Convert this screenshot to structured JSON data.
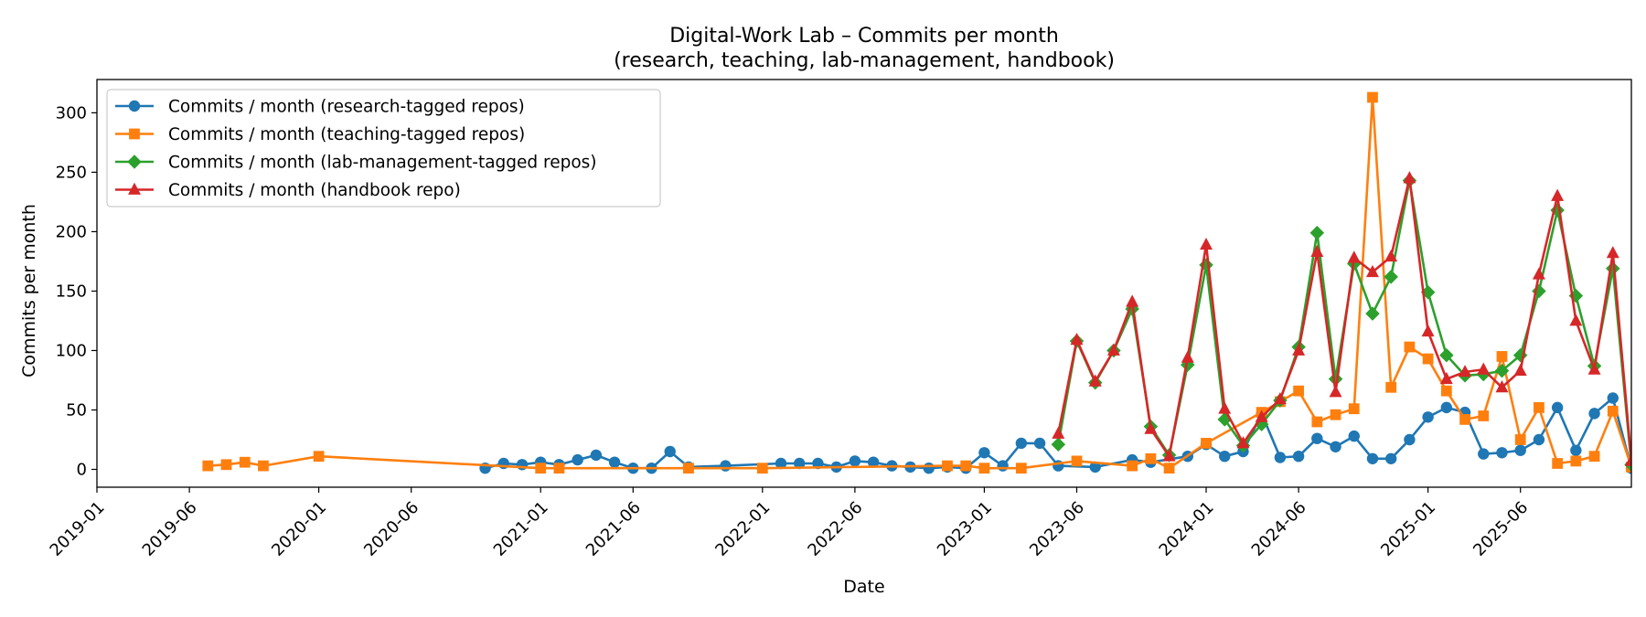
{
  "chart_data": {
    "type": "line",
    "title_lines": [
      "Digital-Work Lab – Commits per month",
      "(research, teaching, lab-management, handbook)"
    ],
    "xlabel": "Date",
    "ylabel": "Commits per month",
    "ylim": [
      -15,
      328
    ],
    "yticks": [
      0,
      50,
      100,
      150,
      200,
      250,
      300
    ],
    "xlim": [
      "2019-01",
      "2025-12"
    ],
    "xticks": [
      "2019-01",
      "2019-06",
      "2020-01",
      "2020-06",
      "2021-01",
      "2021-06",
      "2022-01",
      "2022-06",
      "2023-01",
      "2023-06",
      "2024-01",
      "2024-06",
      "2025-01",
      "2025-06"
    ],
    "legend_location": "upper-left",
    "series": [
      {
        "name": "Commits / month (research-tagged repos)",
        "color": "#1f77b4",
        "marker": "circle",
        "points": [
          [
            "2020-10",
            1
          ],
          [
            "2020-11",
            5
          ],
          [
            "2020-12",
            4
          ],
          [
            "2021-01",
            6
          ],
          [
            "2021-02",
            4
          ],
          [
            "2021-03",
            8
          ],
          [
            "2021-04",
            12
          ],
          [
            "2021-05",
            6
          ],
          [
            "2021-06",
            1
          ],
          [
            "2021-07",
            1
          ],
          [
            "2021-08",
            15
          ],
          [
            "2021-09",
            2
          ],
          [
            "2021-11",
            3
          ],
          [
            "2022-02",
            5
          ],
          [
            "2022-03",
            5
          ],
          [
            "2022-04",
            5
          ],
          [
            "2022-05",
            2
          ],
          [
            "2022-06",
            7
          ],
          [
            "2022-07",
            6
          ],
          [
            "2022-08",
            3
          ],
          [
            "2022-09",
            2
          ],
          [
            "2022-10",
            1
          ],
          [
            "2022-11",
            2
          ],
          [
            "2022-12",
            1
          ],
          [
            "2023-01",
            14
          ],
          [
            "2023-02",
            3
          ],
          [
            "2023-03",
            22
          ],
          [
            "2023-04",
            22
          ],
          [
            "2023-05",
            3
          ],
          [
            "2023-07",
            2
          ],
          [
            "2023-09",
            8
          ],
          [
            "2023-10",
            6
          ],
          [
            "2023-12",
            11
          ],
          [
            "2024-01",
            21
          ],
          [
            "2024-02",
            11
          ],
          [
            "2024-03",
            15
          ],
          [
            "2024-04",
            47
          ],
          [
            "2024-05",
            10
          ],
          [
            "2024-06",
            11
          ],
          [
            "2024-07",
            26
          ],
          [
            "2024-08",
            19
          ],
          [
            "2024-09",
            28
          ],
          [
            "2024-10",
            9
          ],
          [
            "2024-11",
            9
          ],
          [
            "2024-12",
            25
          ],
          [
            "2025-01",
            44
          ],
          [
            "2025-02",
            52
          ],
          [
            "2025-03",
            48
          ],
          [
            "2025-04",
            13
          ],
          [
            "2025-05",
            14
          ],
          [
            "2025-06",
            16
          ],
          [
            "2025-07",
            25
          ],
          [
            "2025-08",
            52
          ],
          [
            "2025-09",
            16
          ],
          [
            "2025-10",
            47
          ],
          [
            "2025-11",
            60
          ],
          [
            "2025-12",
            1
          ]
        ]
      },
      {
        "name": "Commits / month (teaching-tagged repos)",
        "color": "#ff7f0e",
        "marker": "square",
        "points": [
          [
            "2019-07",
            3
          ],
          [
            "2019-08",
            4
          ],
          [
            "2019-09",
            6
          ],
          [
            "2019-10",
            3
          ],
          [
            "2020-01",
            11
          ],
          [
            "2021-01",
            1
          ],
          [
            "2021-02",
            1
          ],
          [
            "2021-09",
            1
          ],
          [
            "2022-01",
            1
          ],
          [
            "2022-11",
            3
          ],
          [
            "2022-12",
            3
          ],
          [
            "2023-01",
            1
          ],
          [
            "2023-03",
            1
          ],
          [
            "2023-06",
            7
          ],
          [
            "2023-09",
            3
          ],
          [
            "2023-10",
            9
          ],
          [
            "2023-11",
            1
          ],
          [
            "2024-01",
            22
          ],
          [
            "2024-04",
            48
          ],
          [
            "2024-05",
            57
          ],
          [
            "2024-06",
            66
          ],
          [
            "2024-07",
            40
          ],
          [
            "2024-08",
            46
          ],
          [
            "2024-09",
            51
          ],
          [
            "2024-10",
            313
          ],
          [
            "2024-11",
            69
          ],
          [
            "2024-12",
            103
          ],
          [
            "2025-01",
            93
          ],
          [
            "2025-02",
            66
          ],
          [
            "2025-03",
            42
          ],
          [
            "2025-04",
            45
          ],
          [
            "2025-05",
            95
          ],
          [
            "2025-06",
            25
          ],
          [
            "2025-07",
            52
          ],
          [
            "2025-08",
            5
          ],
          [
            "2025-09",
            7
          ],
          [
            "2025-10",
            11
          ],
          [
            "2025-11",
            49
          ],
          [
            "2025-12",
            2
          ]
        ]
      },
      {
        "name": "Commits / month (lab-management-tagged repos)",
        "color": "#2ca02c",
        "marker": "diamond",
        "points": [
          [
            "2023-05",
            21
          ],
          [
            "2023-06",
            108
          ],
          [
            "2023-07",
            73
          ],
          [
            "2023-08",
            100
          ],
          [
            "2023-09",
            135
          ],
          [
            "2023-10",
            36
          ],
          [
            "2023-11",
            12
          ],
          [
            "2023-12",
            88
          ],
          [
            "2024-01",
            172
          ],
          [
            "2024-02",
            42
          ],
          [
            "2024-03",
            20
          ],
          [
            "2024-04",
            38
          ],
          [
            "2024-05",
            58
          ],
          [
            "2024-06",
            103
          ],
          [
            "2024-07",
            199
          ],
          [
            "2024-08",
            76
          ],
          [
            "2024-09",
            173
          ],
          [
            "2024-10",
            131
          ],
          [
            "2024-11",
            162
          ],
          [
            "2024-12",
            243
          ],
          [
            "2025-01",
            149
          ],
          [
            "2025-02",
            96
          ],
          [
            "2025-03",
            79
          ],
          [
            "2025-04",
            80
          ],
          [
            "2025-05",
            83
          ],
          [
            "2025-06",
            96
          ],
          [
            "2025-07",
            150
          ],
          [
            "2025-08",
            218
          ],
          [
            "2025-09",
            146
          ],
          [
            "2025-10",
            87
          ],
          [
            "2025-11",
            169
          ],
          [
            "2025-12",
            4
          ]
        ]
      },
      {
        "name": "Commits / month (handbook repo)",
        "color": "#d62728",
        "marker": "triangle",
        "points": [
          [
            "2023-05",
            30
          ],
          [
            "2023-06",
            109
          ],
          [
            "2023-07",
            74
          ],
          [
            "2023-08",
            100
          ],
          [
            "2023-09",
            141
          ],
          [
            "2023-10",
            34
          ],
          [
            "2023-11",
            11
          ],
          [
            "2023-12",
            94
          ],
          [
            "2024-01",
            189
          ],
          [
            "2024-02",
            51
          ],
          [
            "2024-03",
            22
          ],
          [
            "2024-04",
            44
          ],
          [
            "2024-05",
            59
          ],
          [
            "2024-06",
            100
          ],
          [
            "2024-07",
            183
          ],
          [
            "2024-08",
            65
          ],
          [
            "2024-09",
            178
          ],
          [
            "2024-10",
            166
          ],
          [
            "2024-11",
            179
          ],
          [
            "2024-12",
            245
          ],
          [
            "2025-01",
            116
          ],
          [
            "2025-02",
            76
          ],
          [
            "2025-03",
            82
          ],
          [
            "2025-04",
            84
          ],
          [
            "2025-05",
            69
          ],
          [
            "2025-06",
            83
          ],
          [
            "2025-07",
            164
          ],
          [
            "2025-08",
            230
          ],
          [
            "2025-09",
            125
          ],
          [
            "2025-10",
            84
          ],
          [
            "2025-11",
            182
          ],
          [
            "2025-12",
            7
          ]
        ]
      }
    ]
  }
}
